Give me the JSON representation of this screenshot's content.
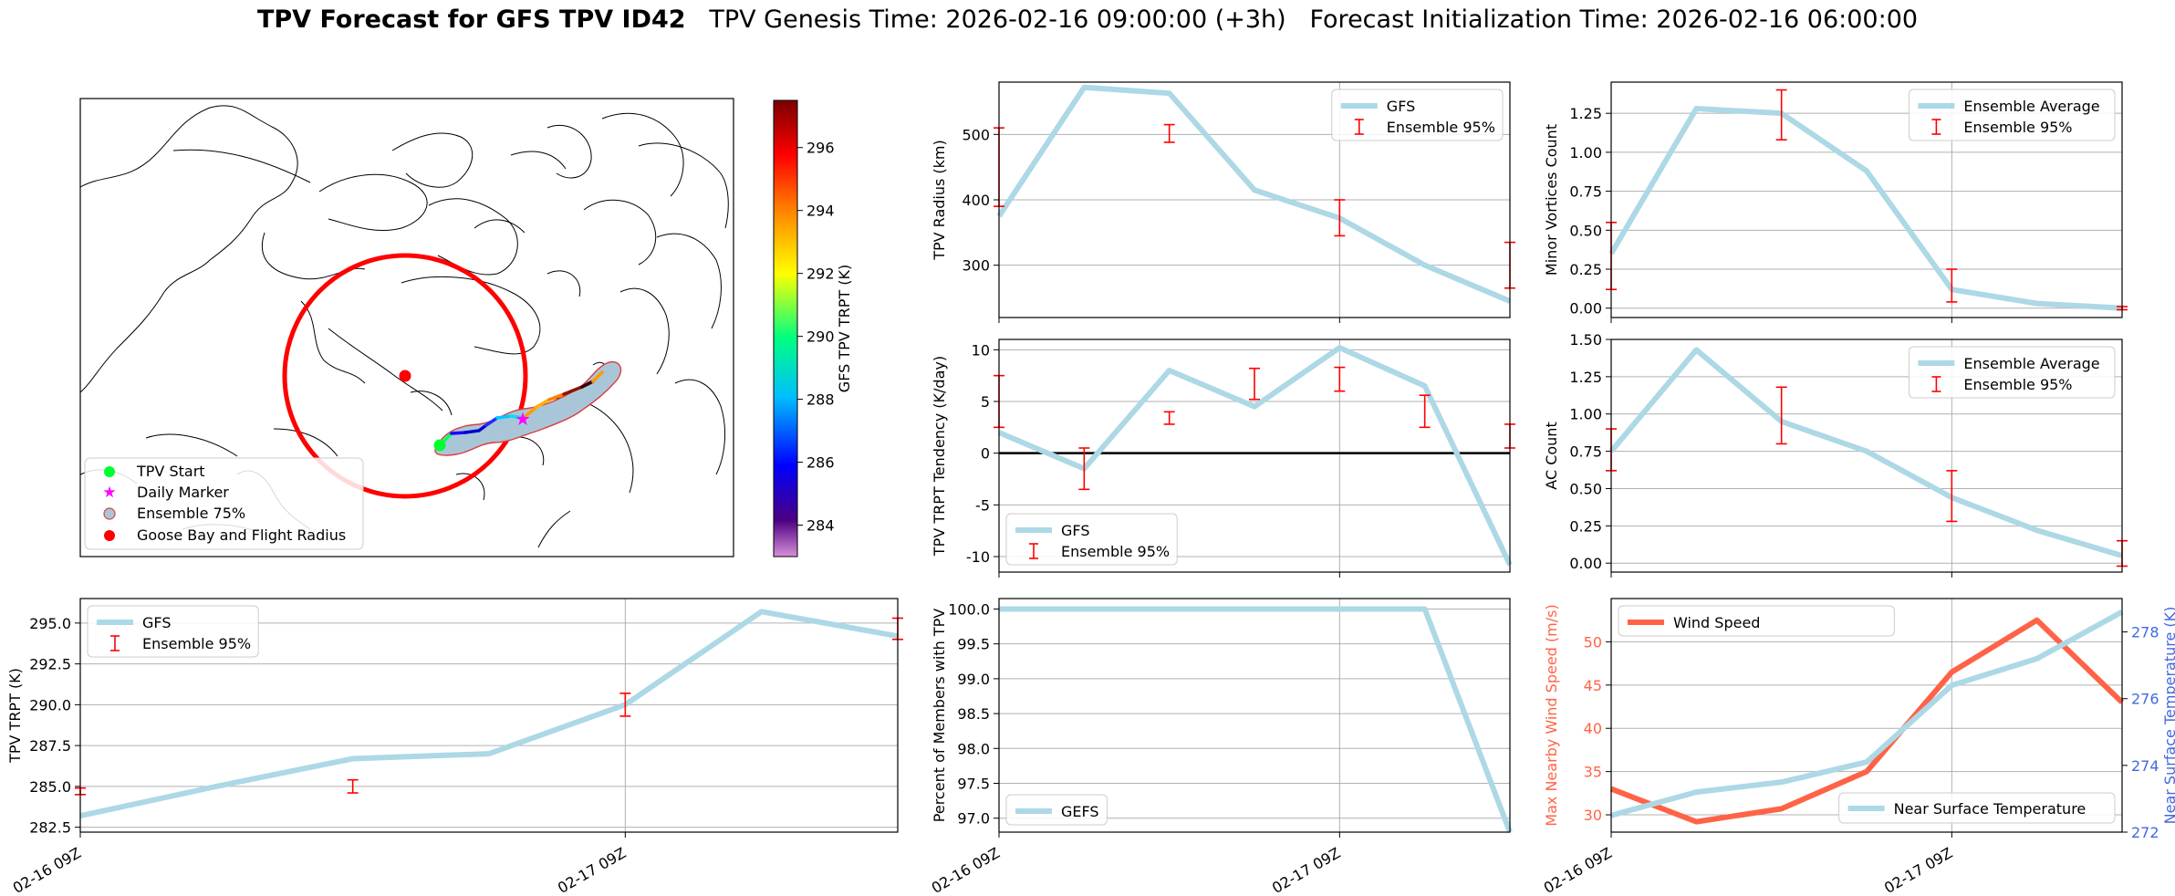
{
  "title": {
    "bold": "TPV Forecast for GFS TPV ID42",
    "genesis": "TPV Genesis Time: 2026-02-16 09:00:00 (+3h)",
    "init": "Forecast Initialization Time: 2026-02-16 06:00:00"
  },
  "colors": {
    "line_blue": "#add8e6",
    "errorbar_red": "#ff0000",
    "wind_red": "#ff6347",
    "temp_axis_blue": "#4169e1",
    "grid": "#b0b0b0"
  },
  "chart_data": [
    {
      "id": "map",
      "type": "map",
      "colorbar_label": "GFS TPV TRPT (K)",
      "colorbar_ticks": [
        "284",
        "286",
        "288",
        "290",
        "292",
        "294",
        "296"
      ],
      "colorbar_range": [
        283,
        297.5
      ],
      "legend": [
        "TPV Start",
        "Daily Marker",
        "Ensemble 75%",
        "Goose Bay and Flight Radius"
      ]
    },
    {
      "id": "radius",
      "type": "line",
      "ylabel": "TPV Radius (km)",
      "ylim": [
        220,
        580
      ],
      "yticks": [
        300,
        400,
        500
      ],
      "x": [
        0,
        0.5,
        1,
        1.5,
        2,
        2.5,
        3
      ],
      "series": [
        {
          "name": "GFS",
          "values": [
            375,
            572,
            563,
            415,
            372,
            300,
            245
          ]
        }
      ],
      "errorbars": [
        {
          "x": 0,
          "low": 390,
          "high": 510
        },
        {
          "x": 1,
          "low": 488,
          "high": 515
        },
        {
          "x": 2,
          "low": 345,
          "high": 400
        },
        {
          "x": 3,
          "low": 265,
          "high": 335
        }
      ],
      "legend": [
        "GFS",
        "Ensemble 95%"
      ]
    },
    {
      "id": "minor",
      "type": "line",
      "ylabel": "Minor Vortices Count",
      "ylim": [
        -0.06,
        1.45
      ],
      "yticks": [
        "0.00",
        "0.25",
        "0.50",
        "0.75",
        "1.00",
        "1.25"
      ],
      "x": [
        0,
        0.5,
        1,
        1.5,
        2,
        2.5,
        3
      ],
      "series": [
        {
          "name": "Ensemble Average",
          "values": [
            0.35,
            1.28,
            1.25,
            0.88,
            0.12,
            0.03,
            0
          ]
        }
      ],
      "errorbars": [
        {
          "x": 0,
          "low": 0.12,
          "high": 0.55
        },
        {
          "x": 1,
          "low": 1.08,
          "high": 1.4
        },
        {
          "x": 2,
          "low": 0.04,
          "high": 0.25
        },
        {
          "x": 3,
          "low": -0.01,
          "high": 0.01
        }
      ],
      "legend": [
        "Ensemble Average",
        "Ensemble 95%"
      ]
    },
    {
      "id": "tendency",
      "type": "line",
      "ylabel": "TPV TRPT Tendency (K/day)",
      "ylim": [
        -11.5,
        11
      ],
      "yticks": [
        -10,
        -5,
        0,
        5,
        10
      ],
      "x": [
        0,
        0.5,
        1,
        1.5,
        2,
        2.5,
        3
      ],
      "series": [
        {
          "name": "GFS",
          "values": [
            2,
            -1.5,
            8,
            4.5,
            10.2,
            6.5,
            -10.8
          ]
        }
      ],
      "errorbars": [
        {
          "x": 0,
          "low": 2.5,
          "high": 7.5
        },
        {
          "x": 0.5,
          "low": -3.5,
          "high": 0.5
        },
        {
          "x": 1,
          "low": 2.8,
          "high": 4
        },
        {
          "x": 1.5,
          "low": 5.2,
          "high": 8.2
        },
        {
          "x": 2,
          "low": 6,
          "high": 8.3
        },
        {
          "x": 2.5,
          "low": 2.5,
          "high": 5.6
        },
        {
          "x": 3,
          "low": 0.5,
          "high": 2.8
        }
      ],
      "hline": 0,
      "legend": [
        "GFS",
        "Ensemble 95%"
      ]
    },
    {
      "id": "ac",
      "type": "line",
      "ylabel": "AC Count",
      "ylim": [
        -0.06,
        1.5
      ],
      "yticks": [
        "0.00",
        "0.25",
        "0.50",
        "0.75",
        "1.00",
        "1.25",
        "1.50"
      ],
      "x": [
        0,
        0.5,
        1,
        1.5,
        2,
        2.5,
        3
      ],
      "series": [
        {
          "name": "Ensemble Average",
          "values": [
            0.75,
            1.43,
            0.95,
            0.75,
            0.44,
            0.22,
            0.05
          ]
        }
      ],
      "errorbars": [
        {
          "x": 0,
          "low": 0.62,
          "high": 0.9
        },
        {
          "x": 1,
          "low": 0.8,
          "high": 1.18
        },
        {
          "x": 2,
          "low": 0.28,
          "high": 0.62
        },
        {
          "x": 3,
          "low": -0.02,
          "high": 0.15
        }
      ],
      "legend": [
        "Ensemble Average",
        "Ensemble 95%"
      ]
    },
    {
      "id": "trpt",
      "type": "line",
      "ylabel": "TPV TRPT (K)",
      "ylim": [
        282.2,
        296.5
      ],
      "yticks": [
        "282.5",
        "285.0",
        "287.5",
        "290.0",
        "292.5",
        "295.0"
      ],
      "x": [
        0,
        0.5,
        1,
        1.5,
        2,
        2.5,
        3
      ],
      "series": [
        {
          "name": "GFS",
          "values": [
            283.2,
            285.0,
            286.7,
            287.0,
            290.0,
            295.7,
            294.2
          ]
        }
      ],
      "errorbars": [
        {
          "x": 0,
          "low": 284.5,
          "high": 284.9
        },
        {
          "x": 1,
          "low": 284.6,
          "high": 285.4
        },
        {
          "x": 2,
          "low": 289.3,
          "high": 290.7
        },
        {
          "x": 3,
          "low": 294.0,
          "high": 295.3
        }
      ],
      "xticklabels": [
        "02-16 09Z",
        "02-17 09Z"
      ],
      "legend": [
        "GFS",
        "Ensemble 95%"
      ]
    },
    {
      "id": "members",
      "type": "line",
      "ylabel": "Percent of Members with TPV",
      "ylim": [
        96.8,
        100.15
      ],
      "yticks": [
        "97.0",
        "97.5",
        "98.0",
        "98.5",
        "99.0",
        "99.5",
        "100.0"
      ],
      "x": [
        0,
        0.5,
        1,
        1.5,
        2,
        2.5,
        3
      ],
      "series": [
        {
          "name": "GEFS",
          "values": [
            100,
            100,
            100,
            100,
            100,
            100,
            96.8
          ]
        }
      ],
      "xticklabels": [
        "02-16 09Z",
        "02-17 09Z"
      ],
      "legend": [
        "GEFS"
      ]
    },
    {
      "id": "wind",
      "type": "line",
      "ylabel": "Max Nearby Wind Speed (m/s)",
      "ylabel2": "Near Surface Temperature (K)",
      "ylim": [
        28,
        55
      ],
      "yticks": [
        30,
        35,
        40,
        45,
        50
      ],
      "ylim2": [
        272,
        279
      ],
      "yticks2": [
        272,
        274,
        276,
        278
      ],
      "x": [
        0,
        0.5,
        1,
        1.5,
        2,
        2.5,
        3
      ],
      "series": [
        {
          "name": "Wind Speed",
          "values": [
            33,
            29.2,
            30.7,
            35,
            46.5,
            52.5,
            43
          ]
        },
        {
          "name": "Near Surface Temperature",
          "values": [
            272.5,
            273.2,
            273.5,
            274.1,
            276.4,
            277.2,
            278.6
          ]
        }
      ],
      "xticklabels": [
        "02-16 09Z",
        "02-17 09Z"
      ],
      "legend": [
        "Wind Speed",
        "Near Surface Temperature"
      ]
    }
  ]
}
